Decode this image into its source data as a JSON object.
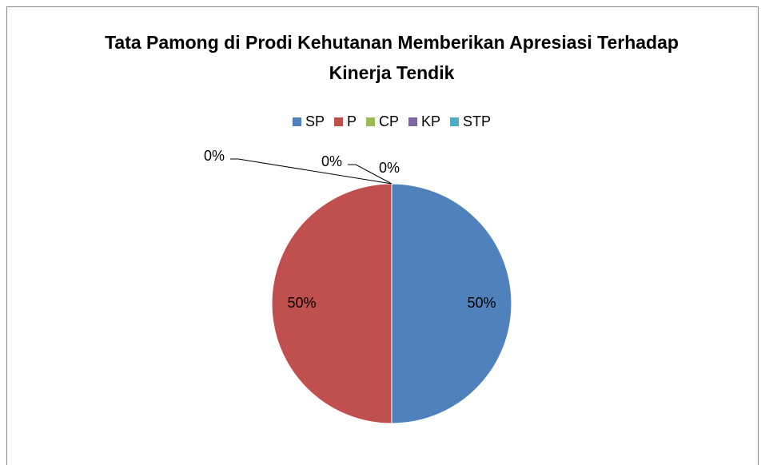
{
  "chart_data": {
    "type": "pie",
    "title": "Tata Pamong di Prodi Kehutanan Memberikan Apresiasi Terhadap Kinerja Tendik",
    "categories": [
      "SP",
      "P",
      "CP",
      "KP",
      "STP"
    ],
    "values": [
      50,
      50,
      0,
      0,
      0
    ],
    "value_labels": [
      "50%",
      "50%",
      "0%",
      "0%",
      "0%"
    ],
    "colors": [
      "#4f81bd",
      "#c0504d",
      "#9bbb59",
      "#8064a2",
      "#4bacc6"
    ],
    "legend": "top"
  }
}
